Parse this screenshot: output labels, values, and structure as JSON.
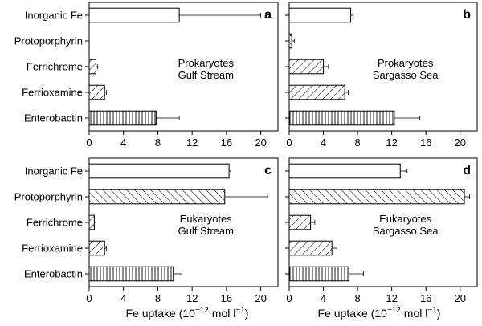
{
  "categories": [
    "Inorganic Fe",
    "Protoporphyrin",
    "Ferrichrome",
    "Ferrioxamine",
    "Enterobactin"
  ],
  "x_ticks": [
    "0",
    "4",
    "8",
    "12",
    "16",
    "20"
  ],
  "xlabel": {
    "prefix": "Fe uptake (10",
    "exp": "−12",
    "mid": " mol l",
    "exp2": "−1",
    "suffix": ")"
  },
  "bar_patterns": [
    "open",
    "backslash",
    "forward",
    "forward",
    "vertical"
  ],
  "chart_data": [
    {
      "type": "bar",
      "orientation": "horizontal",
      "panel": "a",
      "annotation": [
        "Prokaryotes",
        "Gulf Stream"
      ],
      "categories": [
        "Inorganic Fe",
        "Protoporphyrin",
        "Ferrichrome",
        "Ferrioxamine",
        "Enterobactin"
      ],
      "values": [
        10.5,
        0.0,
        0.8,
        1.8,
        7.8
      ],
      "errors": [
        9.5,
        0.0,
        0.2,
        0.2,
        2.7
      ],
      "xlim": [
        0,
        22
      ]
    },
    {
      "type": "bar",
      "orientation": "horizontal",
      "panel": "b",
      "annotation": [
        "Prokaryotes",
        "Sargasso Sea"
      ],
      "categories": [
        "Inorganic Fe",
        "Protoporphyrin",
        "Ferrichrome",
        "Ferrioxamine",
        "Enterobactin"
      ],
      "values": [
        7.2,
        0.3,
        4.0,
        6.5,
        12.3
      ],
      "errors": [
        0.3,
        0.3,
        0.6,
        0.4,
        3.0
      ],
      "xlim": [
        0,
        22
      ]
    },
    {
      "type": "bar",
      "orientation": "horizontal",
      "panel": "c",
      "annotation": [
        "Eukaryotes",
        "Gulf Stream"
      ],
      "categories": [
        "Inorganic Fe",
        "Protoporphyrin",
        "Ferrichrome",
        "Ferrioxamine",
        "Enterobactin"
      ],
      "values": [
        16.3,
        15.8,
        0.6,
        1.8,
        9.8
      ],
      "errors": [
        0.2,
        5.0,
        0.2,
        0.2,
        1.0
      ],
      "xlim": [
        0,
        22
      ]
    },
    {
      "type": "bar",
      "orientation": "horizontal",
      "panel": "d",
      "annotation": [
        "Eukaryotes",
        "Sargasso Sea"
      ],
      "categories": [
        "Inorganic Fe",
        "Protoporphyrin",
        "Ferrichrome",
        "Ferrioxamine",
        "Enterobactin"
      ],
      "values": [
        13.0,
        20.5,
        2.5,
        5.0,
        7.0
      ],
      "errors": [
        0.8,
        0.6,
        0.5,
        0.6,
        1.7
      ],
      "xlim": [
        0,
        22
      ]
    }
  ]
}
